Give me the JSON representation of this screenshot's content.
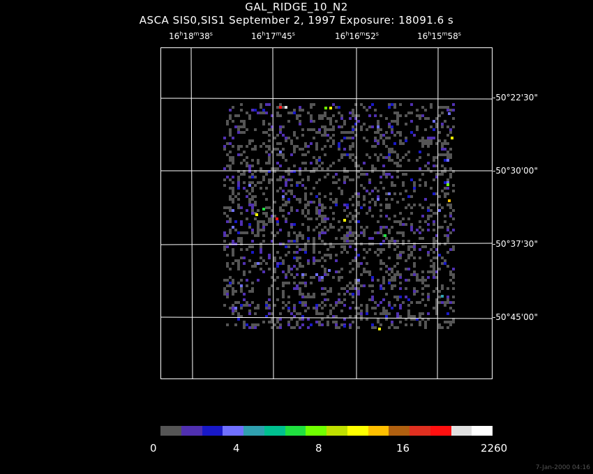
{
  "title": "GAL_RIDGE_10_N2",
  "subtitle": "ASCA SIS0,SIS1 September 2, 1997 Exposure: 18091.6 s",
  "ra_labels": [
    {
      "h": "16",
      "m": "18",
      "s": "38"
    },
    {
      "h": "16",
      "m": "17",
      "s": "45"
    },
    {
      "h": "16",
      "m": "16",
      "s": "52"
    },
    {
      "h": "16",
      "m": "15",
      "s": "58"
    }
  ],
  "dec_labels": [
    "-50°22'30\"",
    "-50°30'00\"",
    "-50°37'30\"",
    "-50°45'00\""
  ],
  "colorbar": {
    "colors": [
      "#555555",
      "#5030b0",
      "#1818c8",
      "#7070ff",
      "#30a0b0",
      "#00c090",
      "#20e040",
      "#70ff00",
      "#c0e000",
      "#ffff00",
      "#ffc000",
      "#b06010",
      "#e03020",
      "#ff1010",
      "#e0e0e0",
      "#ffffff"
    ],
    "ticks": [
      "0",
      "4",
      "8",
      "16",
      "2260"
    ]
  },
  "timestamp": "7-Jan-2000 04:16"
}
